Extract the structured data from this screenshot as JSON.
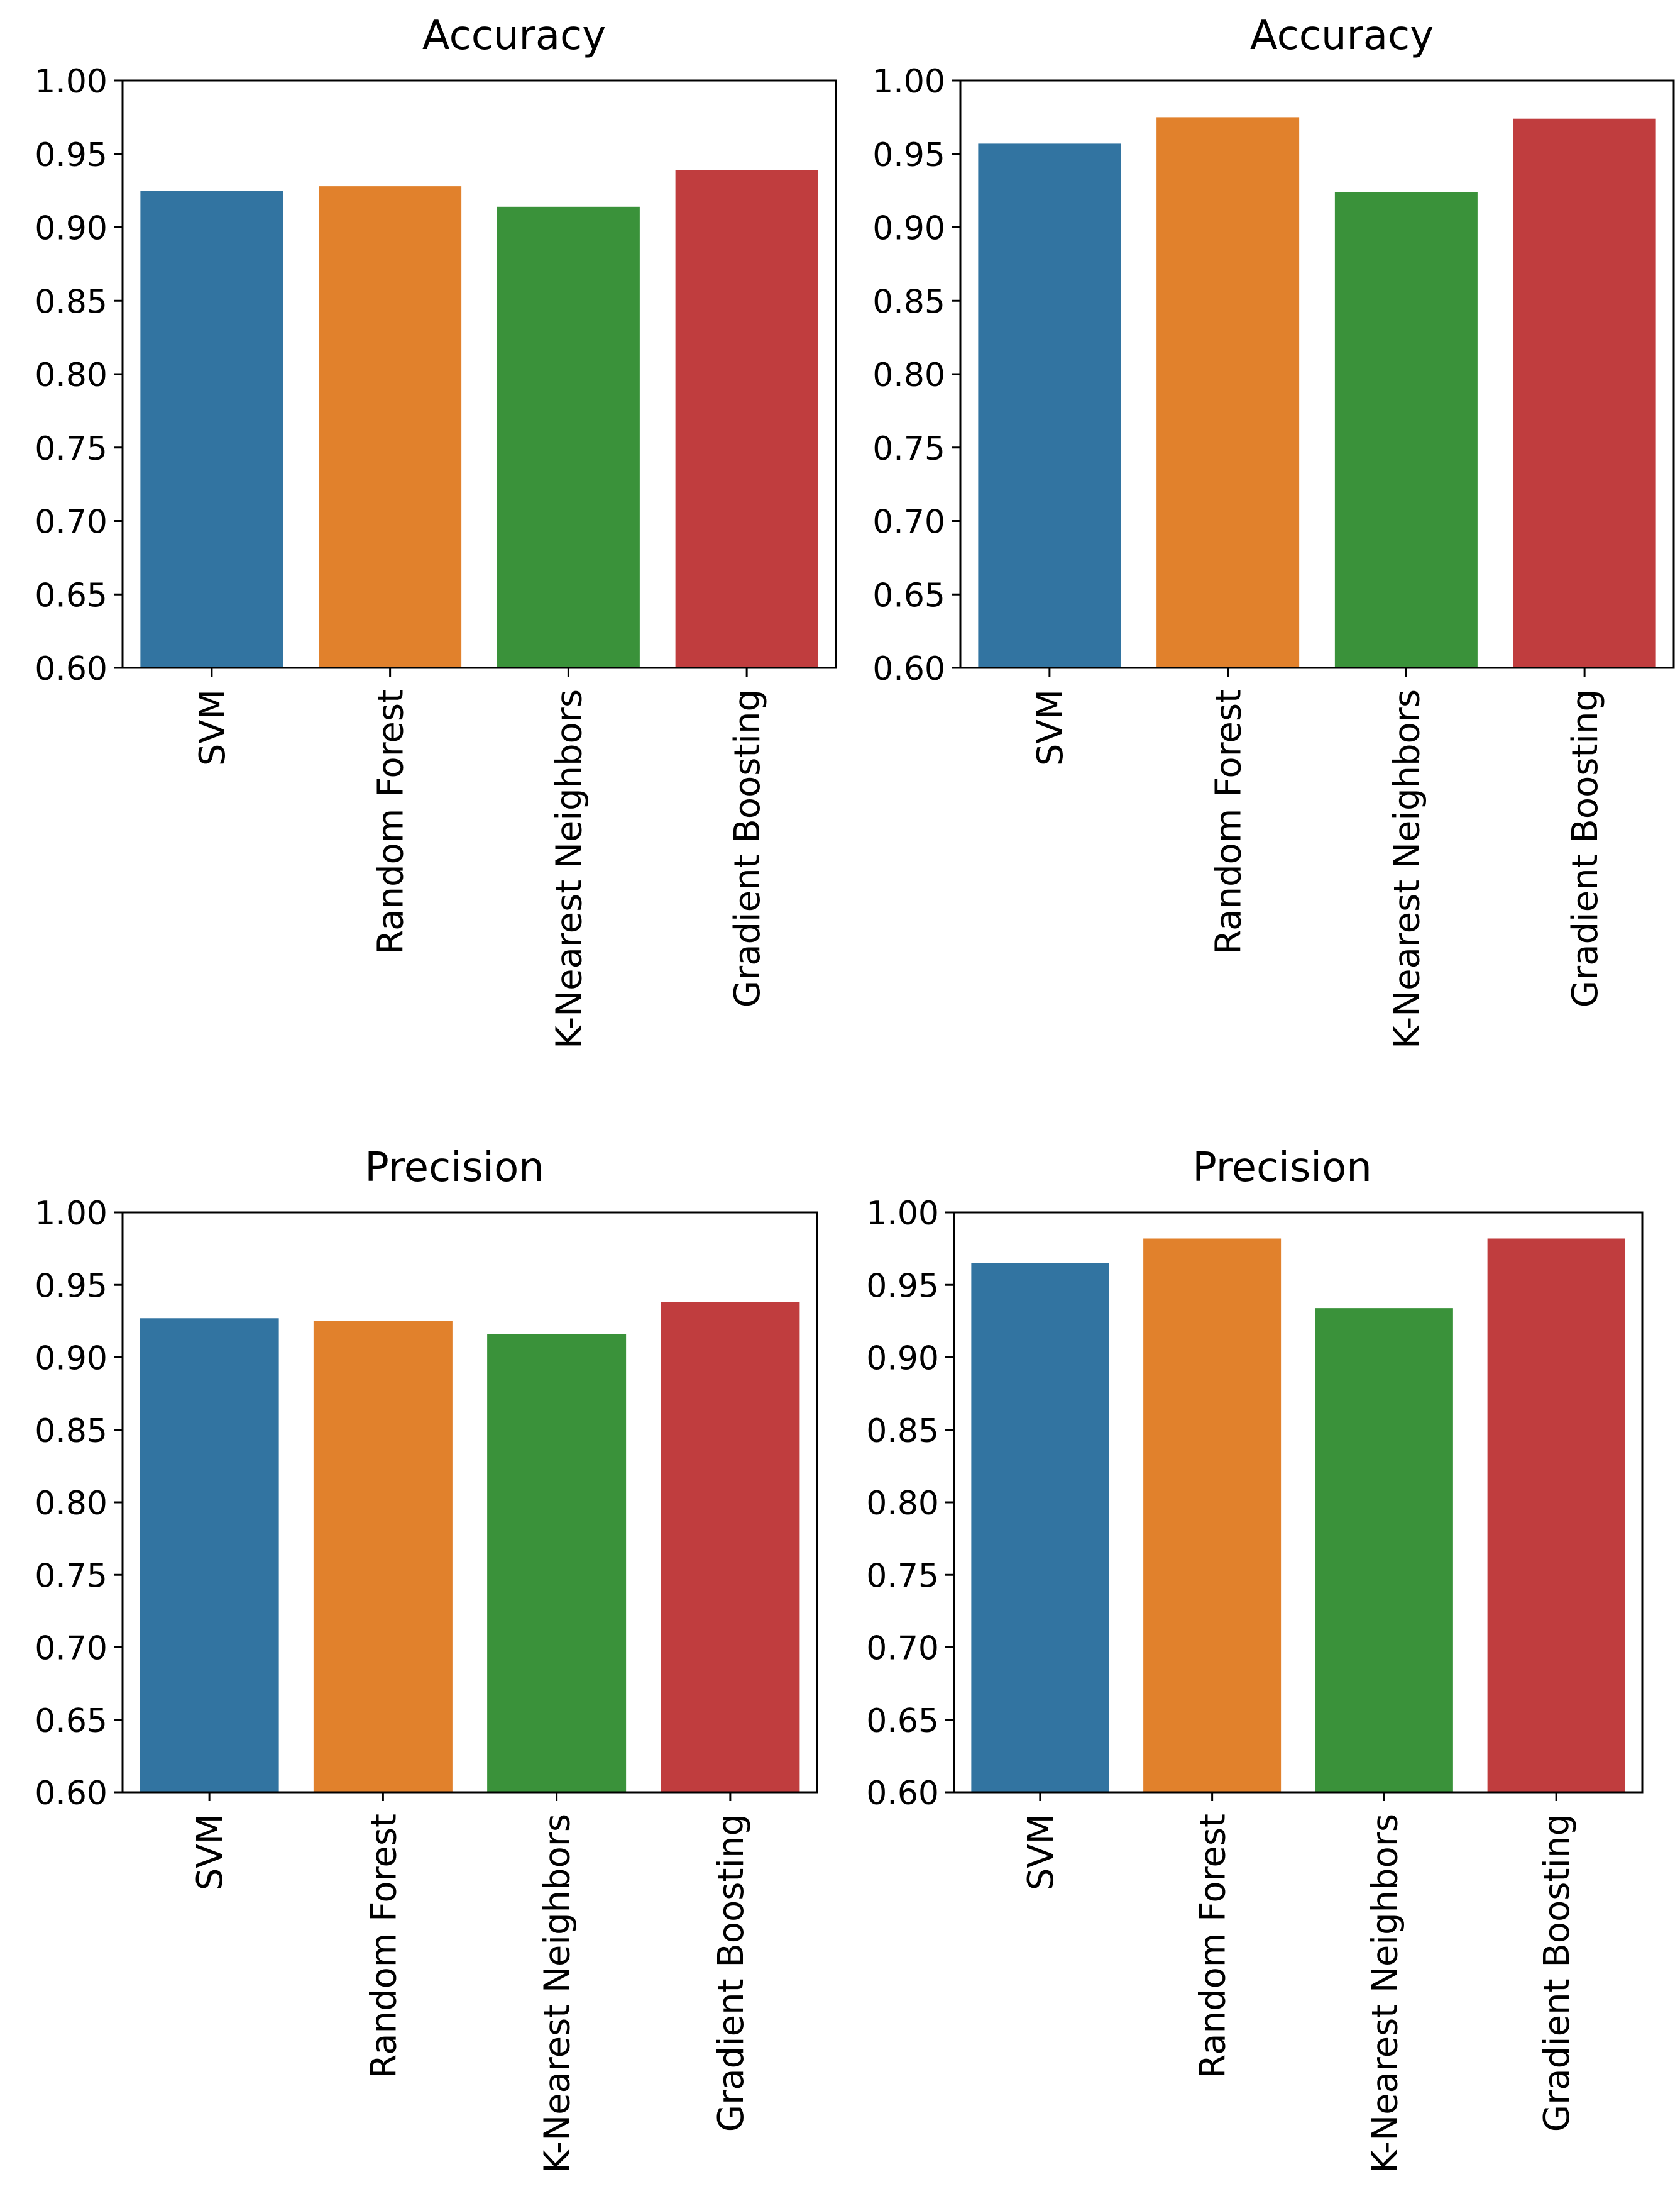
{
  "chart_data": [
    {
      "type": "bar",
      "title": "Accuracy",
      "categories": [
        "SVM",
        "Random Forest",
        "K-Nearest Neighbors",
        "Gradient Boosting"
      ],
      "values": [
        0.925,
        0.928,
        0.914,
        0.939
      ],
      "ylim": [
        0.6,
        1.0
      ],
      "yticks": [
        "0.60",
        "0.65",
        "0.70",
        "0.75",
        "0.80",
        "0.85",
        "0.90",
        "0.95",
        "1.00"
      ],
      "xlabel": "",
      "ylabel": "",
      "grid": false,
      "colors": [
        "#3274a1",
        "#e1812c",
        "#3a923a",
        "#c03d3e"
      ]
    },
    {
      "type": "bar",
      "title": "Accuracy",
      "categories": [
        "SVM",
        "Random Forest",
        "K-Nearest Neighbors",
        "Gradient Boosting"
      ],
      "values": [
        0.957,
        0.975,
        0.924,
        0.974
      ],
      "ylim": [
        0.6,
        1.0
      ],
      "yticks": [
        "0.60",
        "0.65",
        "0.70",
        "0.75",
        "0.80",
        "0.85",
        "0.90",
        "0.95",
        "1.00"
      ],
      "xlabel": "",
      "ylabel": "",
      "grid": false,
      "colors": [
        "#3274a1",
        "#e1812c",
        "#3a923a",
        "#c03d3e"
      ]
    },
    {
      "type": "bar",
      "title": "Precision",
      "categories": [
        "SVM",
        "Random Forest",
        "K-Nearest Neighbors",
        "Gradient Boosting"
      ],
      "values": [
        0.927,
        0.925,
        0.916,
        0.938
      ],
      "ylim": [
        0.6,
        1.0
      ],
      "yticks": [
        "0.60",
        "0.65",
        "0.70",
        "0.75",
        "0.80",
        "0.85",
        "0.90",
        "0.95",
        "1.00"
      ],
      "xlabel": "",
      "ylabel": "",
      "grid": false,
      "colors": [
        "#3274a1",
        "#e1812c",
        "#3a923a",
        "#c03d3e"
      ]
    },
    {
      "type": "bar",
      "title": "Precision",
      "categories": [
        "SVM",
        "Random Forest",
        "K-Nearest Neighbors",
        "Gradient Boosting"
      ],
      "values": [
        0.965,
        0.982,
        0.934,
        0.982
      ],
      "ylim": [
        0.6,
        1.0
      ],
      "yticks": [
        "0.60",
        "0.65",
        "0.70",
        "0.75",
        "0.80",
        "0.85",
        "0.90",
        "0.95",
        "1.00"
      ],
      "xlabel": "",
      "ylabel": "",
      "grid": false,
      "colors": [
        "#3274a1",
        "#e1812c",
        "#3a923a",
        "#c03d3e"
      ]
    }
  ]
}
